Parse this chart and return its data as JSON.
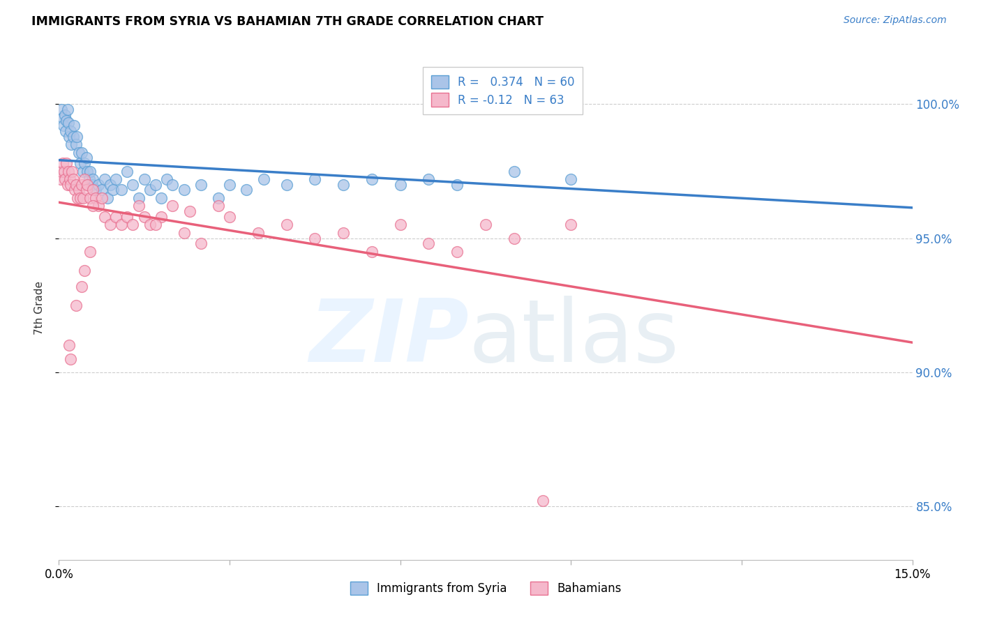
{
  "title": "IMMIGRANTS FROM SYRIA VS BAHAMIAN 7TH GRADE CORRELATION CHART",
  "source": "Source: ZipAtlas.com",
  "ylabel": "7th Grade",
  "legend_syria": "Immigrants from Syria",
  "legend_bahamas": "Bahamians",
  "r_syria": 0.374,
  "n_syria": 60,
  "r_bahamas": -0.12,
  "n_bahamas": 63,
  "color_syria": "#aac4e8",
  "color_bahamas": "#f5b8cb",
  "edge_color_syria": "#5a9fd4",
  "edge_color_bahamas": "#e87090",
  "line_color_syria": "#3a7ec8",
  "line_color_bahamas": "#e8607a",
  "xlim": [
    0.0,
    15.0
  ],
  "ylim": [
    83.0,
    101.8
  ],
  "yticks": [
    85,
    90,
    95,
    100
  ],
  "ytick_labels": [
    "85.0%",
    "90.0%",
    "95.0%",
    "100.0%"
  ],
  "xticks": [
    0,
    3,
    6,
    9,
    12,
    15
  ],
  "xtick_labels": [
    "0.0%",
    "",
    "",
    "",
    "",
    "15.0%"
  ],
  "syria_x": [
    0.05,
    0.07,
    0.08,
    0.1,
    0.12,
    0.13,
    0.15,
    0.17,
    0.18,
    0.2,
    0.22,
    0.25,
    0.27,
    0.3,
    0.32,
    0.35,
    0.38,
    0.4,
    0.42,
    0.45,
    0.48,
    0.5,
    0.53,
    0.55,
    0.58,
    0.6,
    0.65,
    0.7,
    0.75,
    0.8,
    0.85,
    0.9,
    0.95,
    1.0,
    1.1,
    1.2,
    1.3,
    1.4,
    1.5,
    1.6,
    1.7,
    1.8,
    1.9,
    2.0,
    2.2,
    2.5,
    2.8,
    3.0,
    3.3,
    3.6,
    4.0,
    4.5,
    5.0,
    5.5,
    6.0,
    6.5,
    7.0,
    8.0,
    9.0,
    8.2
  ],
  "syria_y": [
    99.8,
    99.5,
    99.2,
    99.6,
    99.0,
    99.4,
    99.8,
    99.3,
    98.8,
    99.0,
    98.5,
    98.8,
    99.2,
    98.5,
    98.8,
    98.2,
    97.8,
    98.2,
    97.5,
    97.8,
    98.0,
    97.5,
    97.2,
    97.5,
    97.0,
    97.2,
    96.8,
    97.0,
    96.8,
    97.2,
    96.5,
    97.0,
    96.8,
    97.2,
    96.8,
    97.5,
    97.0,
    96.5,
    97.2,
    96.8,
    97.0,
    96.5,
    97.2,
    97.0,
    96.8,
    97.0,
    96.5,
    97.0,
    96.8,
    97.2,
    97.0,
    97.2,
    97.0,
    97.2,
    97.0,
    97.2,
    97.0,
    97.5,
    97.2,
    100.2
  ],
  "bahamas_x": [
    0.03,
    0.05,
    0.07,
    0.09,
    0.11,
    0.13,
    0.15,
    0.17,
    0.19,
    0.21,
    0.23,
    0.25,
    0.28,
    0.3,
    0.33,
    0.35,
    0.38,
    0.4,
    0.43,
    0.45,
    0.48,
    0.5,
    0.55,
    0.6,
    0.65,
    0.7,
    0.75,
    0.8,
    0.9,
    1.0,
    1.1,
    1.2,
    1.3,
    1.4,
    1.5,
    1.6,
    1.8,
    2.0,
    2.2,
    2.5,
    2.8,
    3.0,
    3.5,
    4.0,
    4.5,
    5.0,
    5.5,
    6.0,
    6.5,
    7.0,
    7.5,
    8.0,
    8.5,
    9.0,
    2.3,
    1.7,
    0.6,
    0.45,
    0.55,
    0.2,
    0.18,
    0.3,
    0.4
  ],
  "bahamas_y": [
    97.2,
    97.5,
    97.8,
    97.5,
    97.2,
    97.8,
    97.0,
    97.5,
    97.2,
    97.0,
    97.5,
    97.2,
    96.8,
    97.0,
    96.5,
    96.8,
    96.5,
    97.0,
    96.5,
    97.2,
    96.8,
    97.0,
    96.5,
    96.8,
    96.5,
    96.2,
    96.5,
    95.8,
    95.5,
    95.8,
    95.5,
    95.8,
    95.5,
    96.2,
    95.8,
    95.5,
    95.8,
    96.2,
    95.2,
    94.8,
    96.2,
    95.8,
    95.2,
    95.5,
    95.0,
    95.2,
    94.5,
    95.5,
    94.8,
    94.5,
    95.5,
    95.0,
    85.2,
    95.5,
    96.0,
    95.5,
    96.2,
    93.8,
    94.5,
    90.5,
    91.0,
    92.5,
    93.2
  ]
}
